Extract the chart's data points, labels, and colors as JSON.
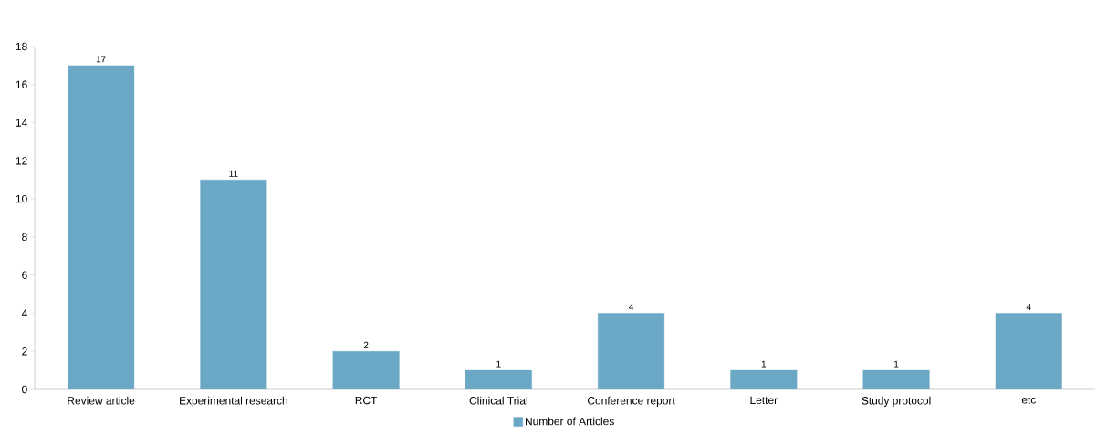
{
  "chart_data": {
    "type": "bar",
    "categories": [
      "Review article",
      "Experimental research",
      "RCT",
      "Clinical Trial",
      "Conference report",
      "Letter",
      "Study protocol",
      "etc"
    ],
    "series": [
      {
        "name": "Number of Articles",
        "color": "#6aa8c5",
        "values": [
          17,
          11,
          2,
          1,
          4,
          1,
          1,
          4
        ]
      }
    ],
    "ylim": [
      0,
      18
    ],
    "yticks": [
      0,
      2,
      4,
      6,
      8,
      10,
      12,
      14,
      16,
      18
    ],
    "data_labels": true,
    "grid": false,
    "legend": "bottom"
  }
}
